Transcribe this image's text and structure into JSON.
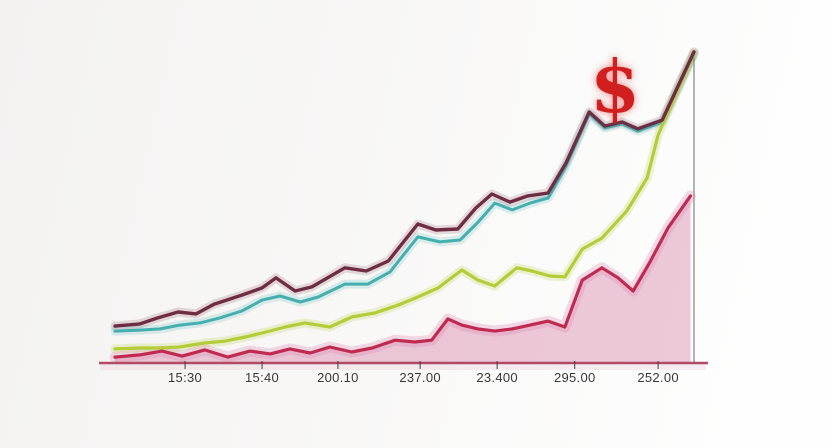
{
  "chart": {
    "background": {
      "left": "#f3f2f1",
      "mid": "#f8f7f6",
      "right": "#fefefe"
    },
    "axis": {
      "line_color": "#b04a66",
      "tick_color": "#3c3c3c",
      "label_color": "#383838",
      "right_border_color": "#8d8d8d",
      "under_axis_haze": "#e9c6d7"
    }
  },
  "annotation": {
    "symbol": "$",
    "color": "#d11f1f"
  },
  "chart_data": {
    "type": "line",
    "title": "",
    "xlabel": "",
    "ylabel": "",
    "ylim": [
      0,
      100
    ],
    "grid": false,
    "legend": "none",
    "x_tick_labels": [
      "15:30",
      "15:40",
      "200.10",
      "237.00",
      "23.400",
      "295.00",
      "252.00"
    ],
    "x_tick_positions": [
      12.1,
      25.4,
      38.5,
      52.7,
      66.0,
      79.4,
      93.8
    ],
    "series": [
      {
        "name": "teal",
        "color": "#44afae",
        "width": 3,
        "glow_width": 9,
        "glow_opacity": 0.18,
        "points": [
          [
            0,
            10.2
          ],
          [
            4.3,
            10.5
          ],
          [
            7.8,
            10.9
          ],
          [
            11.2,
            12.1
          ],
          [
            14.7,
            12.8
          ],
          [
            18.1,
            14.4
          ],
          [
            21.9,
            16.6
          ],
          [
            25.4,
            20.1
          ],
          [
            28.5,
            21.4
          ],
          [
            32,
            19.5
          ],
          [
            35.1,
            21.1
          ],
          [
            39.7,
            25.2
          ],
          [
            43.7,
            25.2
          ],
          [
            47.5,
            29.1
          ],
          [
            52.3,
            40.3
          ],
          [
            56.1,
            38.7
          ],
          [
            59.6,
            39.3
          ],
          [
            62.7,
            45
          ],
          [
            65.6,
            51.1
          ],
          [
            68.6,
            48.9
          ],
          [
            71.7,
            51.1
          ],
          [
            74.8,
            52.7
          ],
          [
            77.9,
            62.9
          ],
          [
            81.9,
            79.6
          ],
          [
            84.6,
            75.1
          ],
          [
            87.6,
            76.4
          ],
          [
            90.3,
            74.1
          ],
          [
            94.5,
            77
          ],
          [
            100,
            98.7
          ]
        ]
      },
      {
        "name": "green",
        "color": "#b3cc38",
        "width": 3.2,
        "glow_width": 9,
        "glow_opacity": 0.22,
        "points": [
          [
            0,
            4.5
          ],
          [
            4.3,
            4.8
          ],
          [
            7.8,
            4.8
          ],
          [
            11.2,
            5.1
          ],
          [
            15.5,
            6.4
          ],
          [
            19,
            7
          ],
          [
            22.5,
            8.3
          ],
          [
            25.4,
            9.6
          ],
          [
            29.4,
            11.5
          ],
          [
            32.8,
            12.8
          ],
          [
            37.1,
            11.5
          ],
          [
            40.9,
            14.7
          ],
          [
            44.9,
            16
          ],
          [
            48.9,
            18.5
          ],
          [
            52.3,
            21.1
          ],
          [
            55.8,
            24
          ],
          [
            59.9,
            29.7
          ],
          [
            62.7,
            26.5
          ],
          [
            65.6,
            24.6
          ],
          [
            69.4,
            30.4
          ],
          [
            72,
            29.4
          ],
          [
            75.1,
            27.8
          ],
          [
            77.7,
            27.5
          ],
          [
            80.7,
            36.4
          ],
          [
            84.1,
            39.9
          ],
          [
            88.4,
            48.6
          ],
          [
            91.9,
            59.1
          ],
          [
            93.8,
            72.8
          ],
          [
            95.5,
            80.2
          ],
          [
            100,
            99
          ]
        ]
      },
      {
        "name": "red",
        "color": "#c02a50",
        "width": 3.2,
        "glow_width": 11,
        "glow_opacity": 0.3,
        "glow_color": "#d987ae",
        "area_fill": "#d77fa8",
        "area_opacity": 0.42,
        "points": [
          [
            0,
            1.9
          ],
          [
            4.3,
            2.6
          ],
          [
            8.1,
            3.8
          ],
          [
            11.6,
            2.2
          ],
          [
            15.5,
            4.2
          ],
          [
            19.5,
            1.9
          ],
          [
            23.3,
            3.8
          ],
          [
            26.8,
            2.9
          ],
          [
            30.2,
            4.5
          ],
          [
            33.7,
            3.2
          ],
          [
            37.1,
            5.1
          ],
          [
            40.9,
            3.5
          ],
          [
            44.4,
            4.8
          ],
          [
            48.4,
            7.3
          ],
          [
            51.8,
            6.7
          ],
          [
            54.7,
            7.3
          ],
          [
            57.5,
            14.1
          ],
          [
            59.9,
            12.1
          ],
          [
            62.7,
            10.9
          ],
          [
            65.6,
            10.2
          ],
          [
            68.6,
            10.9
          ],
          [
            71.7,
            12.1
          ],
          [
            74.8,
            13.4
          ],
          [
            77.7,
            11.5
          ],
          [
            80.7,
            26.5
          ],
          [
            84.1,
            30.4
          ],
          [
            86.9,
            27.2
          ],
          [
            89.5,
            23
          ],
          [
            92.4,
            32.3
          ],
          [
            95.5,
            43.1
          ],
          [
            99.4,
            53.4
          ]
        ]
      },
      {
        "name": "maroon",
        "color": "#6f2d44",
        "width": 3.4,
        "glow_width": 9,
        "glow_opacity": 0.16,
        "points": [
          [
            0,
            11.8
          ],
          [
            4.3,
            12.5
          ],
          [
            7.4,
            14.4
          ],
          [
            10.9,
            16.3
          ],
          [
            14,
            15.7
          ],
          [
            17.1,
            18.8
          ],
          [
            21.9,
            21.7
          ],
          [
            25.4,
            24
          ],
          [
            27.8,
            27.2
          ],
          [
            31.1,
            23
          ],
          [
            34,
            24.3
          ],
          [
            39.7,
            30.4
          ],
          [
            43.4,
            29.4
          ],
          [
            47.2,
            32.6
          ],
          [
            52.3,
            44.4
          ],
          [
            55.4,
            42.5
          ],
          [
            59.2,
            42.8
          ],
          [
            62.3,
            49.5
          ],
          [
            65.1,
            54
          ],
          [
            68.2,
            51.4
          ],
          [
            71.3,
            53.4
          ],
          [
            74.8,
            54.3
          ],
          [
            77.9,
            63.9
          ],
          [
            81.9,
            80.2
          ],
          [
            84.6,
            75.7
          ],
          [
            87.6,
            77
          ],
          [
            90.3,
            74.8
          ],
          [
            94.5,
            77.6
          ],
          [
            100,
            99.4
          ]
        ]
      }
    ]
  }
}
